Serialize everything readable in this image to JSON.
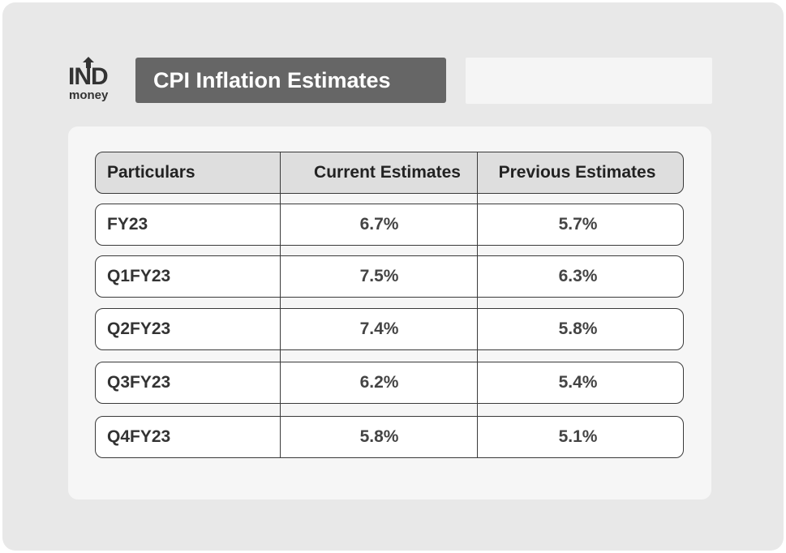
{
  "logo": {
    "top": "IND",
    "bottom": "money",
    "icon": "up-arrow-icon"
  },
  "header": {
    "title": "CPI Inflation Estimates"
  },
  "chart_data": {
    "type": "table",
    "columns": [
      "Particulars",
      "Current Estimates",
      "Previous Estimates"
    ],
    "rows": [
      [
        "FY23",
        "6.7%",
        "5.7%"
      ],
      [
        "Q1FY23",
        "7.5%",
        "6.3%"
      ],
      [
        "Q2FY23",
        "7.4%",
        "5.8%"
      ],
      [
        "Q3FY23",
        "6.2%",
        "5.4%"
      ],
      [
        "Q4FY23",
        "5.8%",
        "5.1%"
      ]
    ]
  }
}
